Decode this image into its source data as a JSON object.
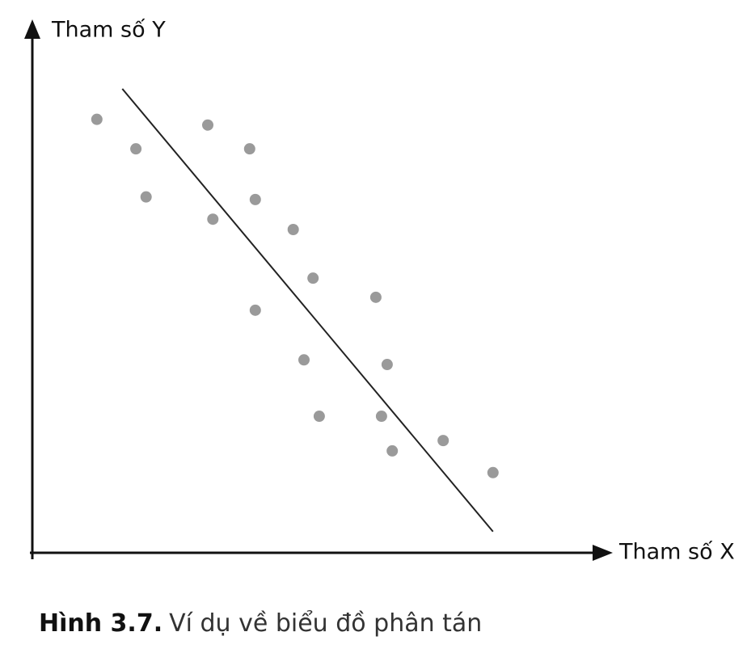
{
  "chart_data": {
    "type": "scatter",
    "y_label": "Tham số Y",
    "x_label": "Tham số X",
    "caption_label": "Hình 3.7.",
    "caption_text": "Ví dụ về biểu đồ phân tán",
    "xlim": [
      0,
      100
    ],
    "ylim": [
      0,
      100
    ],
    "color": "#9a9a9a",
    "x": [
      11.4,
      18.3,
      20.1,
      31.0,
      38.4,
      31.9,
      39.4,
      46.1,
      49.6,
      39.4,
      60.7,
      48.0,
      62.7,
      50.7,
      61.7,
      72.6,
      63.6,
      81.4
    ],
    "values": [
      83.8,
      78.1,
      68.8,
      82.7,
      78.1,
      64.5,
      68.3,
      62.5,
      53.1,
      46.9,
      49.4,
      37.3,
      36.4,
      26.4,
      26.4,
      21.7,
      19.7,
      15.5
    ],
    "trend_line": {
      "color": "#222222",
      "x": [
        15.9,
        81.4
      ],
      "values": [
        89.7,
        4.1
      ]
    }
  }
}
